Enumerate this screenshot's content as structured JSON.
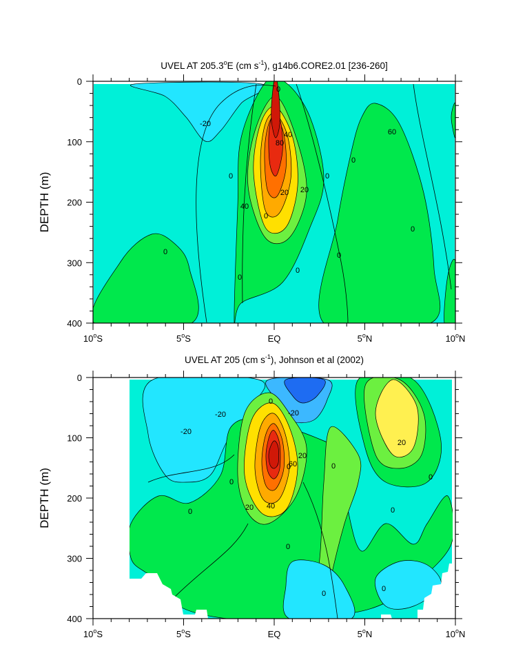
{
  "colors": {
    "teal": "#00f0d8",
    "cyan": "#22e6ff",
    "lightblue": "#3cb8ff",
    "blue": "#1e6cf2",
    "green": "#00e84c",
    "lime": "#6cf040",
    "yellow": "#ffe000",
    "lightyellow": "#fff050",
    "orange": "#ffaa00",
    "darkorange": "#ff7000",
    "red": "#e82a10",
    "darkred": "#d01808"
  },
  "chart_data": [
    {
      "type": "contour",
      "title": "UVEL AT 205.3°E (cm s⁻¹), g14b6.CORE2.01 [236-260]",
      "title_parts": {
        "pre": "UVEL AT 205.3",
        "deg": "o",
        "mid": "E (cm s",
        "sup": "-1",
        "post": "), g14b6.CORE2.01 [236-260]"
      },
      "xlabel": "",
      "ylabel": "DEPTH (m)",
      "x_ticks": [
        {
          "value": -10,
          "num": "10",
          "hem": "S"
        },
        {
          "value": -5,
          "num": "5",
          "hem": "S"
        },
        {
          "value": 0,
          "num": "EQ",
          "hem": ""
        },
        {
          "value": 5,
          "num": "5",
          "hem": "N"
        },
        {
          "value": 10,
          "num": "10",
          "hem": "N"
        }
      ],
      "y_ticks": [
        "0",
        "100",
        "200",
        "300",
        "400"
      ],
      "xlim": [
        -10,
        10
      ],
      "ylim": [
        0,
        400
      ],
      "y_reversed": true,
      "contour_interval": 10,
      "contour_labels": [
        "0",
        "-20",
        "0",
        "40",
        "80",
        "0",
        "0",
        "0",
        "60",
        "20",
        "20",
        "40",
        "0",
        "0",
        "0",
        "0",
        "0"
      ],
      "core_max": {
        "lat": 0,
        "depth": 130
      }
    },
    {
      "type": "contour",
      "title": "UVEL AT 205 (cm s⁻¹), Johnson et al (2002)",
      "title_parts": {
        "pre": "UVEL AT 205 (cm s",
        "sup": "-1",
        "post": "), Johnson et al (2002)"
      },
      "xlabel": "",
      "ylabel": "DEPTH (m)",
      "x_ticks": [
        {
          "value": -10,
          "num": "10",
          "hem": "S"
        },
        {
          "value": -5,
          "num": "5",
          "hem": "S"
        },
        {
          "value": 0,
          "num": "EQ",
          "hem": ""
        },
        {
          "value": 5,
          "num": "5",
          "hem": "N"
        },
        {
          "value": 10,
          "num": "10",
          "hem": "N"
        }
      ],
      "y_ticks": [
        "0",
        "100",
        "200",
        "300",
        "400"
      ],
      "xlim": [
        -10,
        10
      ],
      "ylim": [
        0,
        400
      ],
      "y_reversed": true,
      "contour_interval": 10,
      "contour_labels": [
        "-20",
        "-20",
        "0",
        "-20",
        "20",
        "0",
        "60",
        "20",
        "0",
        "0",
        "0",
        "0",
        "20",
        "40",
        "0",
        "0",
        "0",
        "0"
      ],
      "core_max": {
        "lat": 0,
        "depth": 130
      }
    }
  ]
}
